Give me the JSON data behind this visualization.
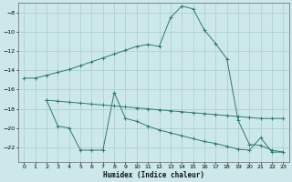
{
  "xlabel": "Humidex (Indice chaleur)",
  "bg_color": "#cce8ea",
  "grid_color": "#aacccc",
  "line_color": "#2e7b6e",
  "xlim": [
    -0.5,
    23.5
  ],
  "ylim": [
    -23.5,
    -7.0
  ],
  "yticks": [
    -8,
    -10,
    -12,
    -14,
    -16,
    -18,
    -20,
    -22
  ],
  "xticks": [
    0,
    1,
    2,
    3,
    4,
    5,
    6,
    7,
    8,
    9,
    10,
    11,
    12,
    13,
    14,
    15,
    16,
    17,
    18,
    19,
    20,
    21,
    22,
    23
  ],
  "line1_x": [
    0,
    1,
    2,
    3,
    4,
    5,
    6,
    7,
    8,
    9,
    10,
    11,
    12,
    13,
    14,
    15,
    16,
    17,
    18,
    19,
    20,
    21,
    22,
    23
  ],
  "line1_y": [
    -14.8,
    -14.8,
    -14.5,
    -14.2,
    -13.9,
    -13.5,
    -13.1,
    -12.7,
    -12.3,
    -11.9,
    -11.5,
    -11.3,
    -11.5,
    -8.5,
    -7.3,
    -7.6,
    -9.8,
    -11.2,
    -12.8,
    -19.2,
    -21.7,
    -21.8,
    -22.3,
    -22.5
  ],
  "line2_x": [
    2,
    3,
    4,
    5,
    6,
    7,
    8,
    9,
    10,
    11,
    12,
    13,
    14,
    15,
    16,
    17,
    18,
    19,
    20,
    21,
    22,
    23
  ],
  "line2_y": [
    -17.1,
    -17.2,
    -17.3,
    -17.4,
    -17.5,
    -17.6,
    -17.7,
    -17.8,
    -17.9,
    -18.0,
    -18.1,
    -18.2,
    -18.3,
    -18.4,
    -18.5,
    -18.6,
    -18.7,
    -18.8,
    -18.9,
    -19.0,
    -19.0,
    -19.0
  ],
  "line3_x": [
    2,
    3,
    4,
    5,
    6,
    7,
    8,
    9,
    10,
    11,
    12,
    13,
    14,
    15,
    16,
    17,
    18,
    19,
    20,
    21,
    22,
    23
  ],
  "line3_y": [
    -17.1,
    -19.8,
    -20.0,
    -22.3,
    -22.3,
    -22.3,
    -16.3,
    -19.0,
    -19.3,
    -19.8,
    -20.2,
    -20.5,
    -20.8,
    -21.1,
    -21.4,
    -21.6,
    -21.9,
    -22.2,
    -22.3,
    -21.0,
    -22.5,
    -22.5
  ]
}
